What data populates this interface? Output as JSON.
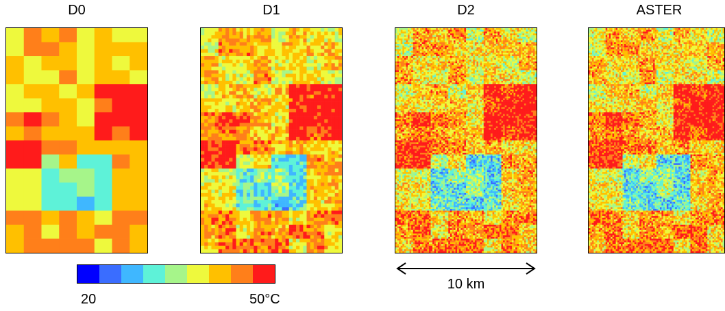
{
  "panels": [
    {
      "title": "D0",
      "grid": [
        8,
        16
      ],
      "seed": 11
    },
    {
      "title": "D1",
      "grid": [
        40,
        64
      ],
      "seed": 23
    },
    {
      "title": "D2",
      "grid": [
        80,
        128
      ],
      "seed": 37
    },
    {
      "title": "ASTER",
      "grid": [
        80,
        128
      ],
      "seed": 53
    }
  ],
  "colorbar": {
    "colors": [
      "#0000ff",
      "#3a6dff",
      "#3fb7ff",
      "#5ef2d8",
      "#a6f58a",
      "#eef93d",
      "#ffc000",
      "#ff7f1a",
      "#ff1b1b"
    ],
    "min_label": "20",
    "max_label": "50°C"
  },
  "scale": {
    "label": "10 km"
  }
}
